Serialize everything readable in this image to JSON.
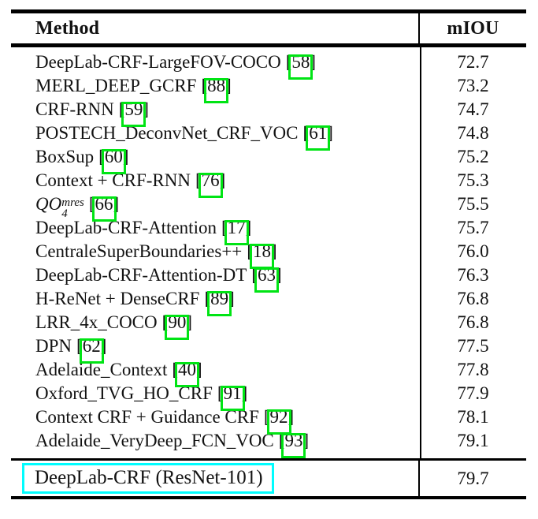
{
  "table": {
    "header": {
      "method_label": "Method",
      "value_label": "mIOU"
    },
    "citation_format": {
      "open": "[",
      "close": "]"
    },
    "rows": [
      {
        "method": "DeepLab-CRF-LargeFOV-COCO",
        "cite": "58",
        "miou": "72.7"
      },
      {
        "method": "MERL_DEEP_GCRF",
        "cite": "88",
        "miou": "73.2"
      },
      {
        "method": "CRF-RNN",
        "cite": "59",
        "miou": "74.7"
      },
      {
        "method": "POSTECH_DeconvNet_CRF_VOC",
        "cite": "61",
        "miou": "74.8"
      },
      {
        "method": "BoxSup",
        "cite": "60",
        "miou": "75.2"
      },
      {
        "method": "Context + CRF-RNN",
        "cite": "76",
        "miou": "75.3"
      },
      {
        "math": {
          "base": "QO",
          "sub": "4",
          "sup": "mres"
        },
        "cite": "66",
        "miou": "75.5"
      },
      {
        "method": "DeepLab-CRF-Attention",
        "cite": "17",
        "miou": "75.7"
      },
      {
        "method": "CentraleSuperBoundaries++",
        "cite": "18",
        "miou": "76.0"
      },
      {
        "method": "DeepLab-CRF-Attention-DT",
        "cite": "63",
        "miou": "76.3"
      },
      {
        "method": "H-ReNet + DenseCRF",
        "cite": "89",
        "miou": "76.8"
      },
      {
        "method": "LRR_4x_COCO",
        "cite": "90",
        "miou": "76.8"
      },
      {
        "method": "DPN",
        "cite": "62",
        "miou": "77.5"
      },
      {
        "method": "Adelaide_Context",
        "cite": "40",
        "miou": "77.8"
      },
      {
        "method": "Oxford_TVG_HO_CRF",
        "cite": "91",
        "miou": "77.9"
      },
      {
        "method": "Context CRF + Guidance CRF",
        "cite": "92",
        "miou": "78.1"
      },
      {
        "method": "Adelaide_VeryDeep_FCN_VOC",
        "cite": "93",
        "miou": "79.1"
      }
    ],
    "footer_row": {
      "method": "DeepLab-CRF (ResNet-101)",
      "miou": "79.7",
      "highlighted": true
    }
  },
  "colors": {
    "citation_box_green": "#00e414",
    "highlight_box_cyan": "#00fdff",
    "rule_black": "#000000"
  }
}
